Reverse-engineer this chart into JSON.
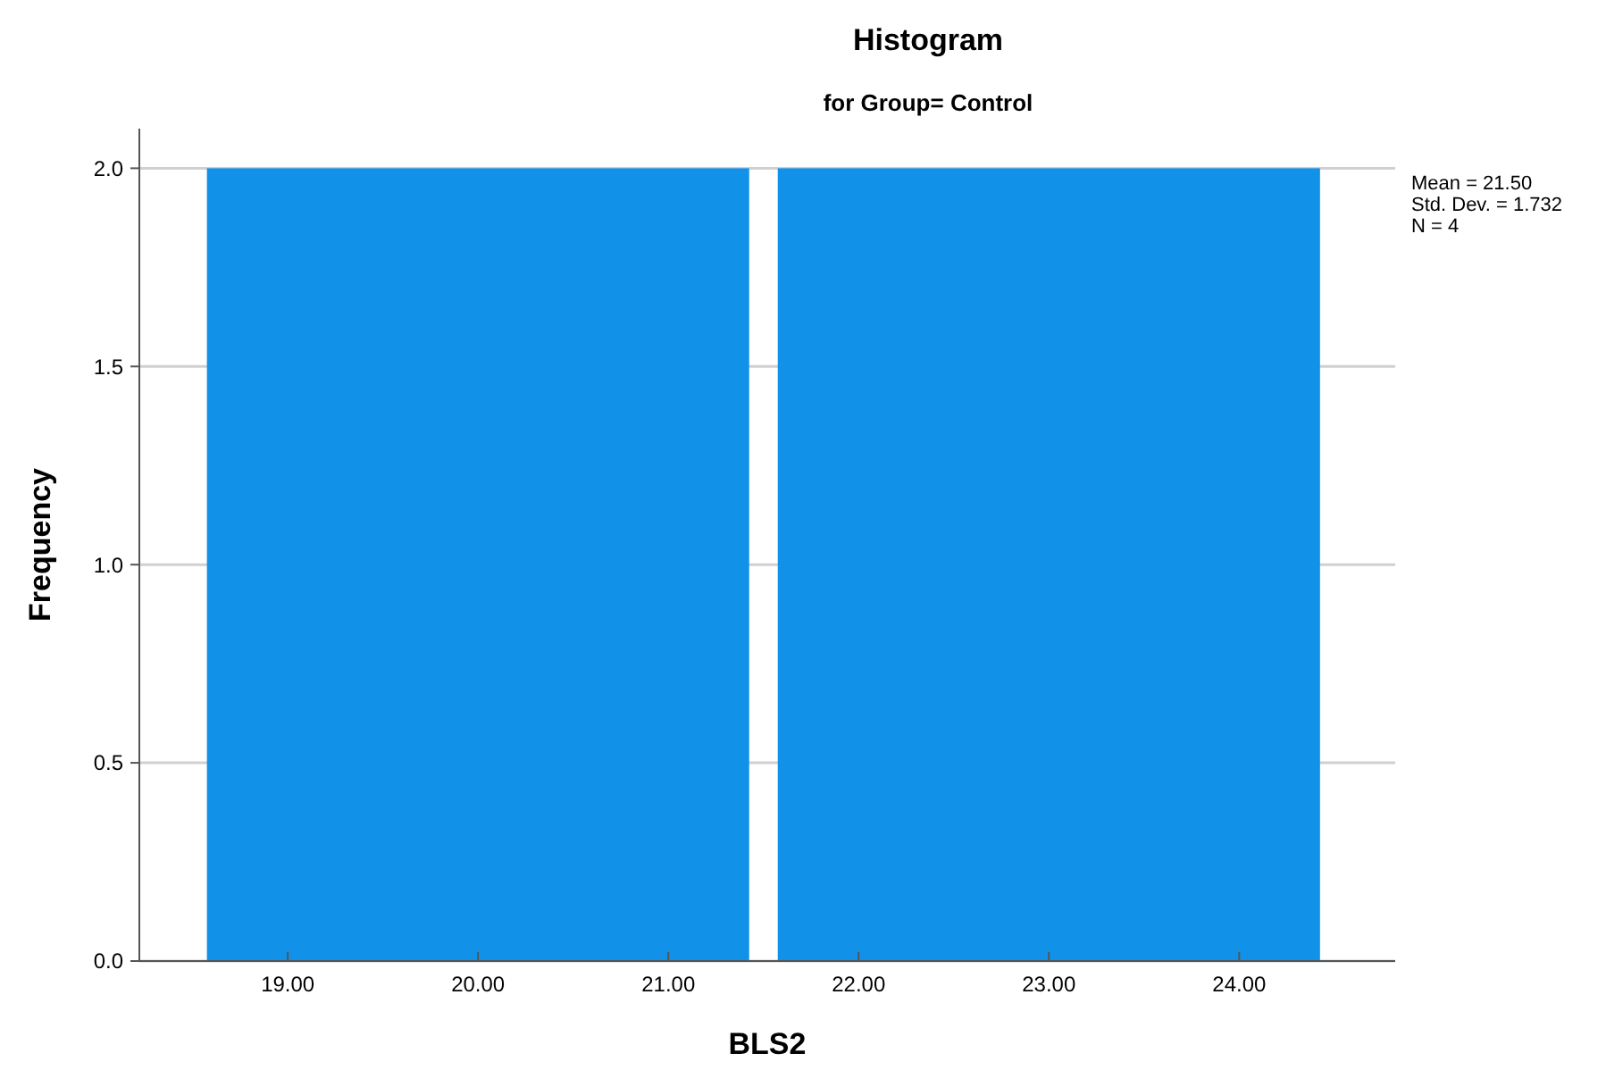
{
  "chart_data": {
    "type": "histogram",
    "title": "Histogram",
    "subtitle": "for Group= Control",
    "xlabel": "BLS2",
    "ylabel": "Frequency",
    "bins": [
      18.5,
      21.5,
      24.5
    ],
    "values": [
      2,
      2
    ],
    "color": "#1192e8",
    "xlim": [
      18.22,
      24.82
    ],
    "xticks": [
      {
        "value": 19,
        "label": "19.00"
      },
      {
        "value": 20,
        "label": "20.00"
      },
      {
        "value": 21,
        "label": "21.00"
      },
      {
        "value": 22,
        "label": "22.00"
      },
      {
        "value": 23,
        "label": "23.00"
      },
      {
        "value": 24,
        "label": "24.00"
      }
    ],
    "ylim": [
      0,
      2.1
    ],
    "yticks": [
      {
        "value": 0,
        "label": "0.0"
      },
      {
        "value": 0.5,
        "label": "0.5"
      },
      {
        "value": 1,
        "label": "1.0"
      },
      {
        "value": 1.5,
        "label": "1.5"
      },
      {
        "value": 2,
        "label": "2.0"
      }
    ],
    "grid": "y",
    "annotations": [
      "Mean = 21.50",
      "Std. Dev. = 1.732",
      "N = 4"
    ]
  }
}
